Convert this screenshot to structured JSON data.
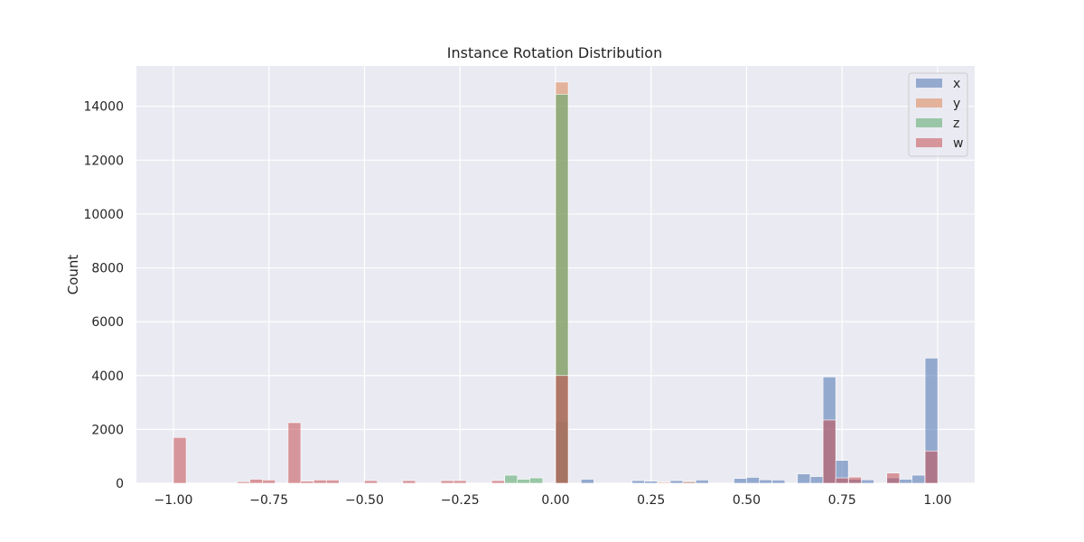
{
  "chart_data": {
    "type": "bar",
    "title": "Instance Rotation Distribution",
    "xlabel": "",
    "ylabel": "Count",
    "xlim": [
      -1.1,
      1.1
    ],
    "ylim": [
      0,
      15500
    ],
    "bin_width": 0.0333,
    "xticks": [
      -1.0,
      -0.75,
      -0.5,
      -0.25,
      0.0,
      0.25,
      0.5,
      0.75,
      1.0
    ],
    "xtick_labels": [
      "−1.00",
      "−0.75",
      "−0.50",
      "−0.25",
      "0.00",
      "0.25",
      "0.50",
      "0.75",
      "1.00"
    ],
    "yticks": [
      0,
      2000,
      4000,
      6000,
      8000,
      10000,
      12000,
      14000
    ],
    "ytick_labels": [
      "0",
      "2000",
      "4000",
      "6000",
      "8000",
      "10000",
      "12000",
      "14000"
    ],
    "grid": true,
    "legend_position": "top-right",
    "series": [
      {
        "name": "x",
        "color": "#4c72b0",
        "bins": [
          {
            "x": 0.0,
            "value": 2300
          },
          {
            "x": 0.067,
            "value": 150
          },
          {
            "x": 0.2,
            "value": 100
          },
          {
            "x": 0.233,
            "value": 80
          },
          {
            "x": 0.3,
            "value": 100
          },
          {
            "x": 0.333,
            "value": 80
          },
          {
            "x": 0.367,
            "value": 120
          },
          {
            "x": 0.467,
            "value": 180
          },
          {
            "x": 0.5,
            "value": 220
          },
          {
            "x": 0.533,
            "value": 130
          },
          {
            "x": 0.567,
            "value": 120
          },
          {
            "x": 0.633,
            "value": 350
          },
          {
            "x": 0.667,
            "value": 250
          },
          {
            "x": 0.7,
            "value": 3950
          },
          {
            "x": 0.733,
            "value": 850
          },
          {
            "x": 0.767,
            "value": 150
          },
          {
            "x": 0.8,
            "value": 130
          },
          {
            "x": 0.867,
            "value": 200
          },
          {
            "x": 0.9,
            "value": 150
          },
          {
            "x": 0.933,
            "value": 300
          },
          {
            "x": 0.967,
            "value": 4650
          }
        ]
      },
      {
        "name": "y",
        "color": "#dd8452",
        "bins": [
          {
            "x": 0.0,
            "value": 14900
          },
          {
            "x": 0.267,
            "value": 40
          },
          {
            "x": 0.333,
            "value": 60
          }
        ]
      },
      {
        "name": "z",
        "color": "#55a868",
        "bins": [
          {
            "x": -0.133,
            "value": 300
          },
          {
            "x": -0.1,
            "value": 150
          },
          {
            "x": -0.067,
            "value": 200
          },
          {
            "x": 0.0,
            "value": 14450
          }
        ]
      },
      {
        "name": "w",
        "color": "#c44e52",
        "bins": [
          {
            "x": -1.0,
            "value": 1700
          },
          {
            "x": -0.833,
            "value": 60
          },
          {
            "x": -0.8,
            "value": 150
          },
          {
            "x": -0.767,
            "value": 120
          },
          {
            "x": -0.7,
            "value": 2250
          },
          {
            "x": -0.667,
            "value": 80
          },
          {
            "x": -0.633,
            "value": 120
          },
          {
            "x": -0.6,
            "value": 120
          },
          {
            "x": -0.5,
            "value": 100
          },
          {
            "x": -0.4,
            "value": 100
          },
          {
            "x": -0.3,
            "value": 100
          },
          {
            "x": -0.267,
            "value": 100
          },
          {
            "x": -0.167,
            "value": 100
          },
          {
            "x": 0.0,
            "value": 4000
          },
          {
            "x": 0.7,
            "value": 2350
          },
          {
            "x": 0.733,
            "value": 200
          },
          {
            "x": 0.767,
            "value": 230
          },
          {
            "x": 0.867,
            "value": 380
          },
          {
            "x": 0.967,
            "value": 1200
          }
        ]
      }
    ]
  }
}
